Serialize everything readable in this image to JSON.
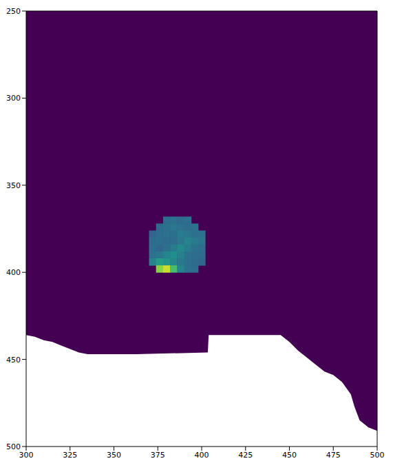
{
  "chart_data": {
    "type": "heatmap",
    "xlim": [
      300,
      500
    ],
    "ylim": [
      250,
      500
    ],
    "xticks": [
      300,
      325,
      350,
      375,
      400,
      425,
      450,
      475,
      500
    ],
    "yticks": [
      250,
      300,
      350,
      400,
      450,
      500
    ],
    "background_value": 0,
    "color_range": [
      0,
      1
    ],
    "cell_size": 4,
    "nan_boundary": [
      [
        300,
        436
      ],
      [
        305,
        437
      ],
      [
        310,
        439
      ],
      [
        315,
        440
      ],
      [
        320,
        442
      ],
      [
        325,
        444
      ],
      [
        330,
        446
      ],
      [
        335,
        447
      ],
      [
        363,
        447
      ],
      [
        403.5,
        446
      ],
      [
        404,
        436
      ],
      [
        445,
        436
      ],
      [
        450,
        440
      ],
      [
        455,
        445
      ],
      [
        460,
        449
      ],
      [
        465,
        453
      ],
      [
        470,
        457
      ],
      [
        475,
        459
      ],
      [
        480,
        463
      ],
      [
        485,
        470
      ],
      [
        487,
        477
      ],
      [
        490,
        485
      ],
      [
        495,
        489
      ],
      [
        500,
        491
      ]
    ],
    "cells": [
      {
        "x": 380,
        "y": 370,
        "value": 0.36
      },
      {
        "x": 384,
        "y": 370,
        "value": 0.38
      },
      {
        "x": 388,
        "y": 370,
        "value": 0.35
      },
      {
        "x": 392,
        "y": 370,
        "value": 0.37
      },
      {
        "x": 376,
        "y": 374,
        "value": 0.35
      },
      {
        "x": 380,
        "y": 374,
        "value": 0.37
      },
      {
        "x": 384,
        "y": 374,
        "value": 0.4
      },
      {
        "x": 388,
        "y": 374,
        "value": 0.38
      },
      {
        "x": 392,
        "y": 374,
        "value": 0.36
      },
      {
        "x": 396,
        "y": 374,
        "value": 0.38
      },
      {
        "x": 372,
        "y": 378,
        "value": 0.33
      },
      {
        "x": 376,
        "y": 378,
        "value": 0.36
      },
      {
        "x": 380,
        "y": 378,
        "value": 0.38
      },
      {
        "x": 384,
        "y": 378,
        "value": 0.37
      },
      {
        "x": 388,
        "y": 378,
        "value": 0.42
      },
      {
        "x": 392,
        "y": 378,
        "value": 0.4
      },
      {
        "x": 396,
        "y": 378,
        "value": 0.37
      },
      {
        "x": 400,
        "y": 378,
        "value": 0.38
      },
      {
        "x": 372,
        "y": 382,
        "value": 0.35
      },
      {
        "x": 376,
        "y": 382,
        "value": 0.37
      },
      {
        "x": 380,
        "y": 382,
        "value": 0.35
      },
      {
        "x": 384,
        "y": 382,
        "value": 0.36
      },
      {
        "x": 388,
        "y": 382,
        "value": 0.4
      },
      {
        "x": 392,
        "y": 382,
        "value": 0.45
      },
      {
        "x": 396,
        "y": 382,
        "value": 0.42
      },
      {
        "x": 400,
        "y": 382,
        "value": 0.39
      },
      {
        "x": 372,
        "y": 386,
        "value": 0.36
      },
      {
        "x": 376,
        "y": 386,
        "value": 0.34
      },
      {
        "x": 380,
        "y": 386,
        "value": 0.37
      },
      {
        "x": 384,
        "y": 386,
        "value": 0.42
      },
      {
        "x": 388,
        "y": 386,
        "value": 0.47
      },
      {
        "x": 392,
        "y": 386,
        "value": 0.43
      },
      {
        "x": 396,
        "y": 386,
        "value": 0.38
      },
      {
        "x": 400,
        "y": 386,
        "value": 0.36
      },
      {
        "x": 372,
        "y": 390,
        "value": 0.38
      },
      {
        "x": 376,
        "y": 390,
        "value": 0.4
      },
      {
        "x": 380,
        "y": 390,
        "value": 0.45
      },
      {
        "x": 384,
        "y": 390,
        "value": 0.5
      },
      {
        "x": 388,
        "y": 390,
        "value": 0.44
      },
      {
        "x": 392,
        "y": 390,
        "value": 0.38
      },
      {
        "x": 396,
        "y": 390,
        "value": 0.36
      },
      {
        "x": 400,
        "y": 390,
        "value": 0.35
      },
      {
        "x": 372,
        "y": 394,
        "value": 0.45
      },
      {
        "x": 376,
        "y": 394,
        "value": 0.55
      },
      {
        "x": 380,
        "y": 394,
        "value": 0.52
      },
      {
        "x": 384,
        "y": 394,
        "value": 0.46
      },
      {
        "x": 388,
        "y": 394,
        "value": 0.4
      },
      {
        "x": 392,
        "y": 394,
        "value": 0.37
      },
      {
        "x": 396,
        "y": 394,
        "value": 0.35
      },
      {
        "x": 400,
        "y": 394,
        "value": 0.34
      },
      {
        "x": 376,
        "y": 398,
        "value": 0.82
      },
      {
        "x": 380,
        "y": 398,
        "value": 0.92
      },
      {
        "x": 384,
        "y": 398,
        "value": 0.7
      },
      {
        "x": 388,
        "y": 398,
        "value": 0.45
      },
      {
        "x": 392,
        "y": 398,
        "value": 0.38
      },
      {
        "x": 396,
        "y": 398,
        "value": 0.36
      }
    ]
  }
}
